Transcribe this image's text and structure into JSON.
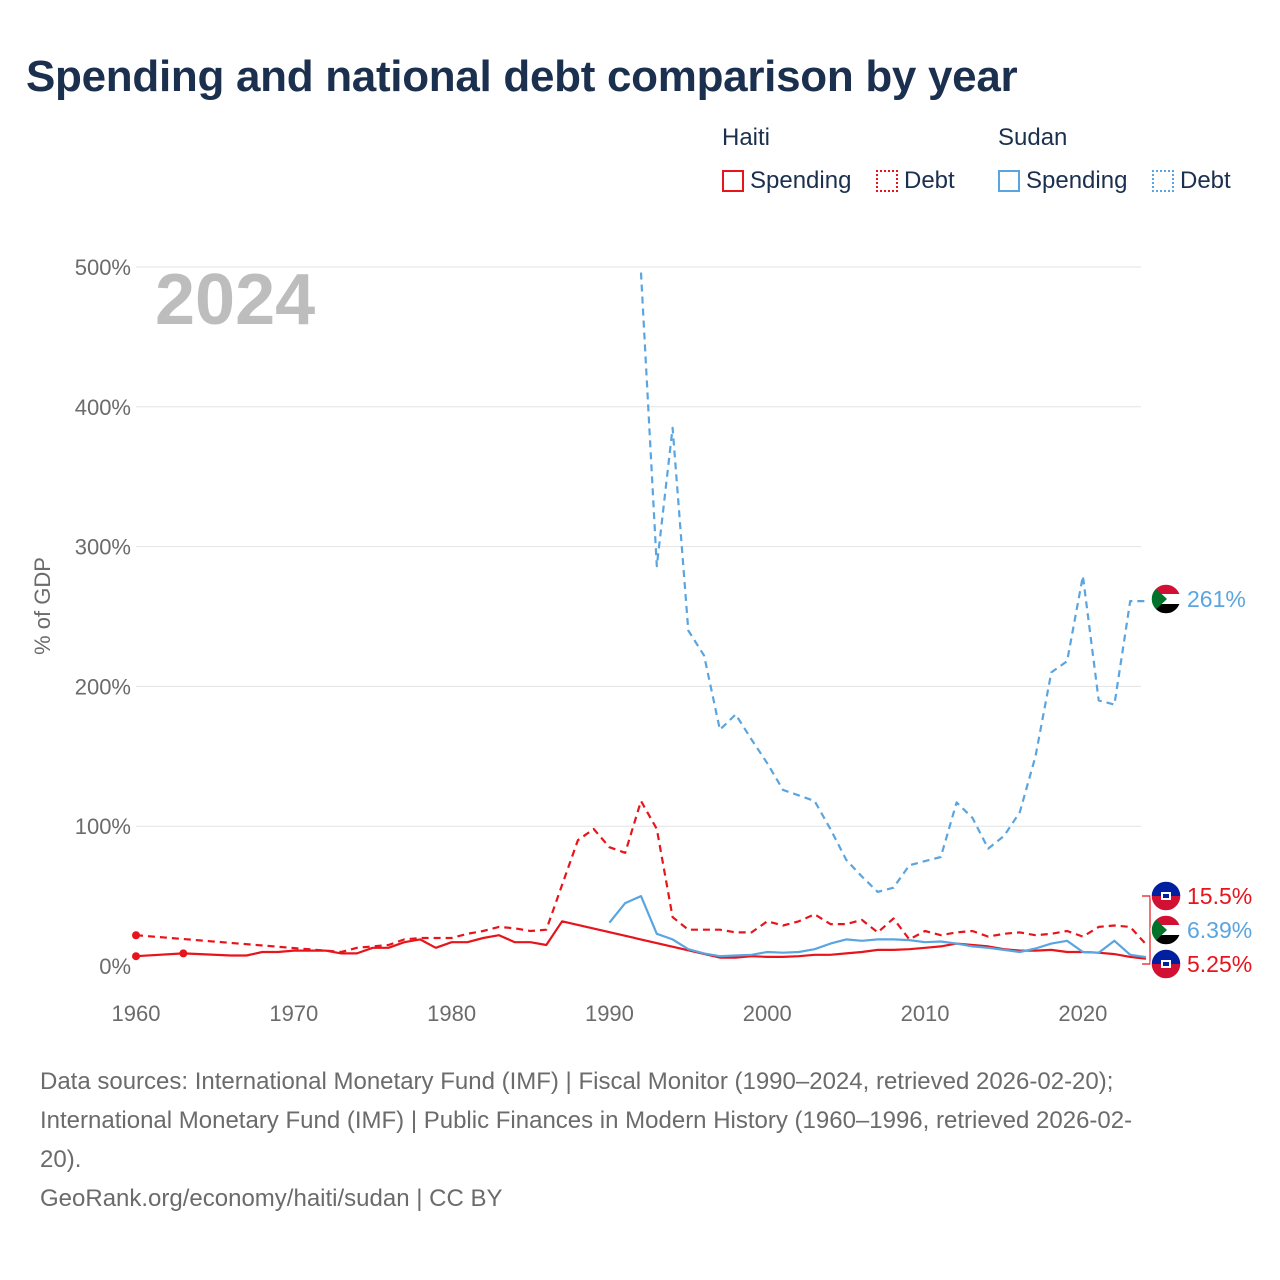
{
  "title": "Spending and national debt comparison by year",
  "legend": {
    "groups": [
      {
        "name": "Haiti",
        "items": [
          {
            "label": "Spending",
            "style": "solid"
          },
          {
            "label": "Debt",
            "style": "dotted"
          }
        ],
        "color": "#e8141b"
      },
      {
        "name": "Sudan",
        "items": [
          {
            "label": "Spending",
            "style": "solid"
          },
          {
            "label": "Debt",
            "style": "dotted"
          }
        ],
        "color": "#5aa5e0"
      }
    ]
  },
  "footer": {
    "line1": "Data sources: International Monetary Fund (IMF) | Fiscal Monitor (1990–2024, retrieved 2026-02-20);",
    "line2": "International Monetary Fund (IMF) | Public Finances in Modern History (1960–1996, retrieved 2026-02-",
    "line3": "20).",
    "line4": "GeoRank.org/economy/haiti/sudan | CC BY"
  },
  "chart_data": {
    "type": "line",
    "year_label": "2024",
    "ylabel": "% of GDP",
    "xlim": [
      1960,
      2024
    ],
    "ylim": [
      0,
      500
    ],
    "x_ticks": [
      1960,
      1970,
      1980,
      1990,
      2000,
      2010,
      2020
    ],
    "y_ticks": [
      {
        "value": 0,
        "label": "0%"
      },
      {
        "value": 100,
        "label": "100%"
      },
      {
        "value": 200,
        "label": "200%"
      },
      {
        "value": 300,
        "label": "300%"
      },
      {
        "value": 400,
        "label": "400%"
      },
      {
        "value": 500,
        "label": "500%"
      }
    ],
    "series": [
      {
        "name": "Haiti Spending",
        "country": "Haiti",
        "color": "#e8141b",
        "dash": "solid",
        "points": [
          [
            1960,
            7
          ],
          [
            1963,
            9
          ],
          [
            1966,
            7.5
          ],
          [
            1967,
            7.5
          ],
          [
            1968,
            10
          ],
          [
            1969,
            10
          ],
          [
            1970,
            11
          ],
          [
            1971,
            11
          ],
          [
            1972,
            11
          ],
          [
            1973,
            9
          ],
          [
            1974,
            9
          ],
          [
            1975,
            13
          ],
          [
            1976,
            13
          ],
          [
            1977,
            17
          ],
          [
            1978,
            19
          ],
          [
            1979,
            13
          ],
          [
            1980,
            17
          ],
          [
            1981,
            17
          ],
          [
            1982,
            20
          ],
          [
            1983,
            22
          ],
          [
            1984,
            17
          ],
          [
            1985,
            17
          ],
          [
            1986,
            15
          ],
          [
            1987,
            32
          ],
          [
            1997,
            6
          ],
          [
            1998,
            6
          ],
          [
            1999,
            7
          ],
          [
            2000,
            6.5
          ],
          [
            2001,
            6.5
          ],
          [
            2002,
            7
          ],
          [
            2003,
            8
          ],
          [
            2004,
            8
          ],
          [
            2005,
            9
          ],
          [
            2006,
            10
          ],
          [
            2007,
            11.5
          ],
          [
            2008,
            11.5
          ],
          [
            2009,
            12
          ],
          [
            2010,
            13
          ],
          [
            2011,
            14
          ],
          [
            2012,
            16
          ],
          [
            2013,
            15
          ],
          [
            2014,
            14
          ],
          [
            2015,
            12
          ],
          [
            2016,
            11
          ],
          [
            2017,
            11
          ],
          [
            2018,
            11.5
          ],
          [
            2019,
            10
          ],
          [
            2020,
            10
          ],
          [
            2021,
            9.5
          ],
          [
            2022,
            8.5
          ],
          [
            2023,
            6.5
          ],
          [
            2024,
            5.25
          ]
        ]
      },
      {
        "name": "Haiti Debt",
        "country": "Haiti",
        "color": "#e8141b",
        "dash": "dashed",
        "points": [
          [
            1960,
            22
          ],
          [
            1972,
            11
          ],
          [
            1973,
            10
          ],
          [
            1974,
            13
          ],
          [
            1975,
            14
          ],
          [
            1976,
            15
          ],
          [
            1977,
            19
          ],
          [
            1978,
            20
          ],
          [
            1979,
            20
          ],
          [
            1980,
            20
          ],
          [
            1981,
            23
          ],
          [
            1982,
            25
          ],
          [
            1983,
            28
          ],
          [
            1984,
            27
          ],
          [
            1985,
            25
          ],
          [
            1986,
            26
          ],
          [
            1987,
            58
          ],
          [
            1988,
            90
          ],
          [
            1989,
            98
          ],
          [
            1990,
            85
          ],
          [
            1991,
            81
          ],
          [
            1992,
            118
          ],
          [
            1993,
            98
          ],
          [
            1994,
            35
          ],
          [
            1995,
            26
          ],
          [
            1996,
            26
          ],
          [
            1997,
            26
          ],
          [
            1998,
            24
          ],
          [
            1999,
            24
          ],
          [
            2000,
            32
          ],
          [
            2001,
            29
          ],
          [
            2002,
            32
          ],
          [
            2003,
            37
          ],
          [
            2004,
            30
          ],
          [
            2005,
            30
          ],
          [
            2006,
            33
          ],
          [
            2007,
            24
          ],
          [
            2008,
            34
          ],
          [
            2009,
            19
          ],
          [
            2010,
            25
          ],
          [
            2011,
            22
          ],
          [
            2012,
            24
          ],
          [
            2013,
            25
          ],
          [
            2014,
            21
          ],
          [
            2015,
            23
          ],
          [
            2016,
            24
          ],
          [
            2017,
            22
          ],
          [
            2018,
            23
          ],
          [
            2019,
            25
          ],
          [
            2020,
            21
          ],
          [
            2021,
            28
          ],
          [
            2022,
            29
          ],
          [
            2023,
            28
          ],
          [
            2024,
            15.5
          ]
        ]
      },
      {
        "name": "Sudan Spending",
        "country": "Sudan",
        "color": "#5aa5e0",
        "dash": "solid",
        "points": [
          [
            1990,
            31
          ],
          [
            1991,
            45
          ],
          [
            1992,
            50
          ],
          [
            1993,
            23
          ],
          [
            1994,
            19
          ],
          [
            1995,
            12
          ],
          [
            1996,
            9
          ],
          [
            1997,
            7
          ],
          [
            1998,
            7.5
          ],
          [
            1999,
            8
          ],
          [
            2000,
            10
          ],
          [
            2001,
            9.5
          ],
          [
            2002,
            10
          ],
          [
            2003,
            12
          ],
          [
            2004,
            16
          ],
          [
            2005,
            19
          ],
          [
            2006,
            18
          ],
          [
            2007,
            19
          ],
          [
            2008,
            19
          ],
          [
            2009,
            18.5
          ],
          [
            2010,
            17
          ],
          [
            2011,
            17.5
          ],
          [
            2012,
            16
          ],
          [
            2013,
            14
          ],
          [
            2014,
            13
          ],
          [
            2015,
            11.5
          ],
          [
            2016,
            10
          ],
          [
            2017,
            12.5
          ],
          [
            2018,
            16
          ],
          [
            2019,
            18
          ],
          [
            2020,
            10
          ],
          [
            2021,
            9.5
          ],
          [
            2022,
            18
          ],
          [
            2023,
            8
          ],
          [
            2024,
            6.39
          ]
        ]
      },
      {
        "name": "Sudan Debt",
        "country": "Sudan",
        "color": "#5aa5e0",
        "dash": "dashed",
        "points": [
          [
            1992,
            496
          ],
          [
            1993,
            286
          ],
          [
            1994,
            385
          ],
          [
            1995,
            240
          ],
          [
            1996,
            222
          ],
          [
            1997,
            169
          ],
          [
            1998,
            180
          ],
          [
            1999,
            162
          ],
          [
            2000,
            145
          ],
          [
            2001,
            126
          ],
          [
            2002,
            122
          ],
          [
            2003,
            118
          ],
          [
            2004,
            98
          ],
          [
            2005,
            76
          ],
          [
            2006,
            64
          ],
          [
            2007,
            53
          ],
          [
            2008,
            56
          ],
          [
            2009,
            72
          ],
          [
            2010,
            75
          ],
          [
            2011,
            78
          ],
          [
            2012,
            117
          ],
          [
            2013,
            106
          ],
          [
            2014,
            84
          ],
          [
            2015,
            93
          ],
          [
            2016,
            110
          ],
          [
            2017,
            150
          ],
          [
            2018,
            210
          ],
          [
            2019,
            218
          ],
          [
            2020,
            279
          ],
          [
            2021,
            190
          ],
          [
            2022,
            187
          ],
          [
            2023,
            261
          ],
          [
            2024,
            261
          ]
        ]
      }
    ],
    "end_labels": [
      {
        "label": "261%",
        "value": 261,
        "country": "Sudan",
        "color": "#5aa5e0"
      },
      {
        "label": "15.5%",
        "value": 15.5,
        "country": "Haiti",
        "color": "#e8141b"
      },
      {
        "label": "6.39%",
        "value": 6.39,
        "country": "Sudan",
        "color": "#5aa5e0"
      },
      {
        "label": "5.25%",
        "value": 5.25,
        "country": "Haiti",
        "color": "#e8141b"
      }
    ],
    "isolated_points": [
      {
        "series": "Haiti Debt",
        "year": 1963,
        "value": 9
      }
    ]
  }
}
